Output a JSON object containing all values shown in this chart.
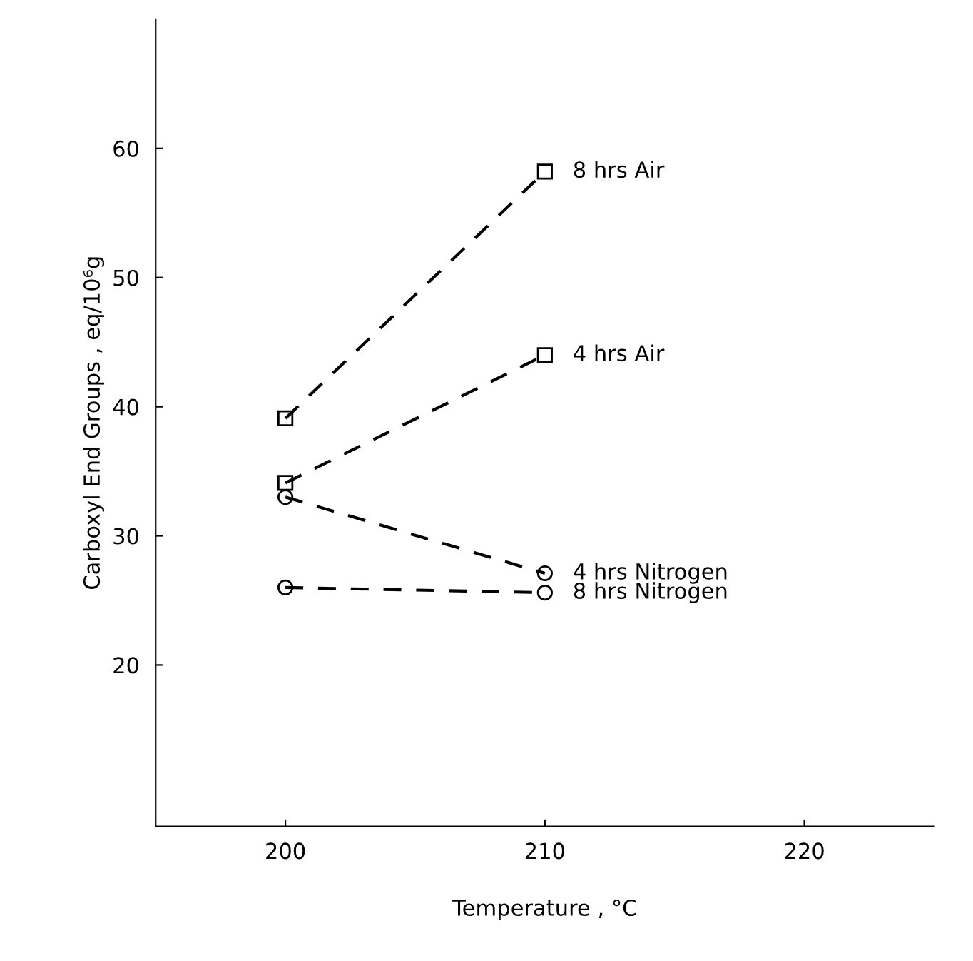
{
  "chart_data": {
    "type": "line",
    "xlabel": "Temperature , °C",
    "ylabel": "Carboxyl End Groups , eq/10⁶g",
    "x": [
      200,
      210
    ],
    "series": [
      {
        "name": "8 hrs Air",
        "color": "#000000",
        "marker": "square",
        "values": [
          39.1,
          58.2
        ]
      },
      {
        "name": "4 hrs Air",
        "color": "#000000",
        "marker": "square",
        "values": [
          34.1,
          44.0
        ]
      },
      {
        "name": "4 hrs Nitrogen",
        "color": "#000000",
        "marker": "circle",
        "values": [
          33.0,
          27.1
        ]
      },
      {
        "name": "8 hrs Nitrogen",
        "color": "#000000",
        "marker": "circle",
        "values": [
          26.0,
          25.6
        ]
      }
    ],
    "line_style": "dashed",
    "xlim": [
      195,
      225
    ],
    "ylim": [
      7.5,
      70
    ],
    "xticks": [
      200,
      210,
      220
    ],
    "yticks": [
      20,
      30,
      40,
      50,
      60
    ],
    "grid": false,
    "legend": false
  }
}
